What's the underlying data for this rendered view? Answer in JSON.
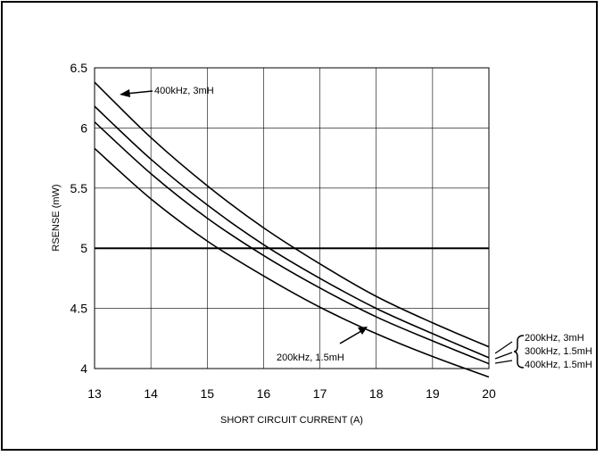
{
  "chart_data": {
    "type": "line",
    "xlabel": "SHORT CIRCUIT CURRENT (A)",
    "ylabel": "RSENSE (mW)",
    "xlim": [
      13,
      20
    ],
    "ylim": [
      4,
      6.5
    ],
    "x_ticks": [
      "13",
      "14",
      "15",
      "16",
      "17",
      "18",
      "19",
      "20"
    ],
    "y_ticks": [
      "4",
      "4.5",
      "5",
      "5.5",
      "6",
      "6.5"
    ],
    "grid": true,
    "reference_line": {
      "y": 5
    },
    "series": [
      {
        "name": "400kHz, 3mH",
        "x": [
          13,
          14,
          15,
          16,
          17,
          18,
          19,
          20
        ],
        "y": [
          6.38,
          5.92,
          5.52,
          5.17,
          4.87,
          4.6,
          4.38,
          4.18
        ]
      },
      {
        "name": "200kHz, 3mH",
        "x": [
          13,
          14,
          15,
          16,
          17,
          18,
          19,
          20
        ],
        "y": [
          6.18,
          5.74,
          5.36,
          5.03,
          4.75,
          4.5,
          4.29,
          4.09
        ]
      },
      {
        "name": "300kHz, 1.5mH",
        "x": [
          13,
          14,
          15,
          16,
          17,
          18,
          19,
          20
        ],
        "y": [
          6.05,
          5.62,
          5.25,
          4.94,
          4.67,
          4.43,
          4.23,
          4.04
        ]
      },
      {
        "name": "200kHz, 1.5mH",
        "x": [
          13,
          14,
          15,
          16,
          17,
          18,
          19,
          20
        ],
        "y": [
          5.83,
          5.41,
          5.06,
          4.77,
          4.51,
          4.29,
          4.1,
          3.93
        ]
      }
    ],
    "annotations": {
      "top_label": "400kHz, 3mH",
      "bottom_label": "200kHz, 1.5mH",
      "right_group": [
        "200kHz, 3mH",
        "300kHz, 1.5mH",
        "400kHz, 1.5mH"
      ]
    }
  }
}
